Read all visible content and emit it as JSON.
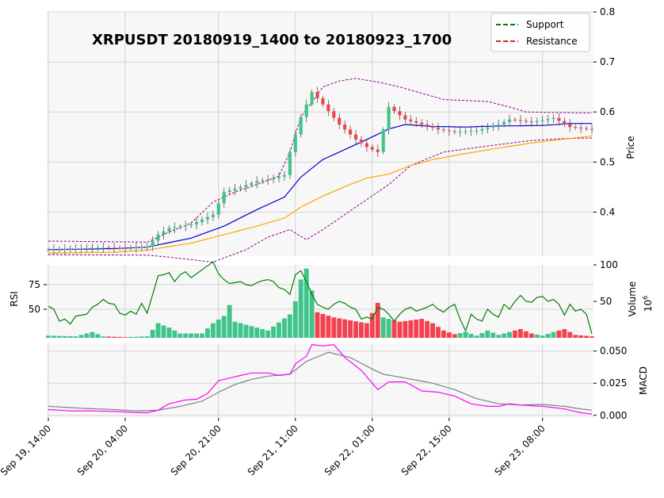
{
  "chart_data": {
    "type": "candlestick",
    "title": "XRPUSDT 20180919_1400 to 20180923_1700",
    "legend": {
      "placement": "top-right",
      "entries": [
        {
          "name": "Support",
          "color": "#008000",
          "style": "dashed"
        },
        {
          "name": "Resistance",
          "color": "#d62728",
          "style": "dashed"
        }
      ]
    },
    "x_ticks": [
      {
        "label": "Sep 19, 14:00",
        "index": 0
      },
      {
        "label": "Sep 20, 04:00",
        "index": 14
      },
      {
        "label": "Sep 20, 21:00",
        "index": 31
      },
      {
        "label": "Sep 21, 11:00",
        "index": 45
      },
      {
        "label": "Sep 22, 01:00",
        "index": 59
      },
      {
        "label": "Sep 22, 15:00",
        "index": 73
      },
      {
        "label": "Sep 23, 08:00",
        "index": 90
      }
    ],
    "n_candles": 100,
    "price_panel": {
      "ylabel": "Price",
      "ylim": [
        0.312,
        0.8
      ],
      "yticks": [
        0.4,
        0.5,
        0.6,
        0.7,
        0.8
      ],
      "ytick_labels": [
        "0.4",
        "0.5",
        "0.6",
        "0.7",
        "0.8"
      ],
      "grid": true
    },
    "rsi_panel": {
      "ylabel": "RSI",
      "ylim": [
        21,
        95
      ],
      "yticks": [
        50,
        75
      ],
      "ytick_labels": [
        "50",
        "75"
      ]
    },
    "volume_panel": {
      "ylabel": "Volume",
      "unit_label": "10",
      "unit_exponent": "6",
      "ylim": [
        0,
        100
      ],
      "yticks": [
        50,
        100
      ],
      "ytick_labels": [
        "50",
        "100"
      ]
    },
    "macd_panel": {
      "ylabel": "MACD",
      "ylim": [
        -0.002,
        0.056
      ],
      "yticks": [
        0.0,
        0.025,
        0.05
      ],
      "ytick_labels": [
        "0.000",
        "0.025",
        "0.050"
      ]
    },
    "colors": {
      "up": "#3fc48a",
      "down": "#f2424f",
      "ma_fast": "#0000cd",
      "ma_slow": "#ffa500",
      "bollinger": "#8b008b",
      "rsi": "#008000",
      "macd": "#ff00ff",
      "macd_signal": "#808080",
      "panel_bg": "#f7f7f7",
      "grid": "#d3d3d3"
    },
    "series_anchors": {
      "close": [
        [
          0,
          0.325
        ],
        [
          10,
          0.329
        ],
        [
          14,
          0.328
        ],
        [
          18,
          0.331
        ],
        [
          20,
          0.355
        ],
        [
          22,
          0.368
        ],
        [
          26,
          0.375
        ],
        [
          30,
          0.395
        ],
        [
          32,
          0.44
        ],
        [
          35,
          0.45
        ],
        [
          38,
          0.462
        ],
        [
          40,
          0.465
        ],
        [
          43,
          0.474
        ],
        [
          44,
          0.52
        ],
        [
          46,
          0.59
        ],
        [
          48,
          0.64
        ],
        [
          50,
          0.615
        ],
        [
          53,
          0.575
        ],
        [
          56,
          0.545
        ],
        [
          58,
          0.53
        ],
        [
          60,
          0.52
        ],
        [
          62,
          0.61
        ],
        [
          65,
          0.585
        ],
        [
          68,
          0.575
        ],
        [
          71,
          0.565
        ],
        [
          74,
          0.56
        ],
        [
          78,
          0.563
        ],
        [
          82,
          0.575
        ],
        [
          84,
          0.585
        ],
        [
          88,
          0.58
        ],
        [
          92,
          0.588
        ],
        [
          95,
          0.57
        ],
        [
          99,
          0.565
        ]
      ],
      "ma_fast": [
        [
          0,
          0.325
        ],
        [
          12,
          0.327
        ],
        [
          18,
          0.33
        ],
        [
          26,
          0.348
        ],
        [
          32,
          0.372
        ],
        [
          38,
          0.405
        ],
        [
          43,
          0.43
        ],
        [
          46,
          0.47
        ],
        [
          50,
          0.505
        ],
        [
          54,
          0.525
        ],
        [
          58,
          0.545
        ],
        [
          62,
          0.566
        ],
        [
          65,
          0.575
        ],
        [
          70,
          0.571
        ],
        [
          76,
          0.57
        ],
        [
          82,
          0.572
        ],
        [
          90,
          0.573
        ],
        [
          95,
          0.577
        ],
        [
          99,
          0.577
        ]
      ],
      "ma_slow": [
        [
          0,
          0.318
        ],
        [
          12,
          0.32
        ],
        [
          18,
          0.324
        ],
        [
          26,
          0.338
        ],
        [
          32,
          0.355
        ],
        [
          38,
          0.372
        ],
        [
          43,
          0.388
        ],
        [
          46,
          0.41
        ],
        [
          50,
          0.432
        ],
        [
          54,
          0.451
        ],
        [
          58,
          0.468
        ],
        [
          62,
          0.476
        ],
        [
          66,
          0.493
        ],
        [
          70,
          0.505
        ],
        [
          76,
          0.517
        ],
        [
          82,
          0.528
        ],
        [
          88,
          0.538
        ],
        [
          94,
          0.546
        ],
        [
          99,
          0.552
        ]
      ],
      "bb_upper": [
        [
          0,
          0.342
        ],
        [
          18,
          0.34
        ],
        [
          22,
          0.36
        ],
        [
          26,
          0.378
        ],
        [
          30,
          0.42
        ],
        [
          34,
          0.44
        ],
        [
          38,
          0.455
        ],
        [
          42,
          0.472
        ],
        [
          44,
          0.52
        ],
        [
          46,
          0.59
        ],
        [
          50,
          0.65
        ],
        [
          53,
          0.662
        ],
        [
          56,
          0.667
        ],
        [
          60,
          0.66
        ],
        [
          64,
          0.65
        ],
        [
          72,
          0.625
        ],
        [
          80,
          0.621
        ],
        [
          84,
          0.61
        ],
        [
          87,
          0.6
        ],
        [
          99,
          0.598
        ]
      ],
      "bb_lower": [
        [
          0,
          0.315
        ],
        [
          18,
          0.314
        ],
        [
          22,
          0.31
        ],
        [
          26,
          0.305
        ],
        [
          30,
          0.3
        ],
        [
          36,
          0.325
        ],
        [
          40,
          0.35
        ],
        [
          44,
          0.365
        ],
        [
          47,
          0.345
        ],
        [
          50,
          0.365
        ],
        [
          54,
          0.395
        ],
        [
          58,
          0.425
        ],
        [
          62,
          0.455
        ],
        [
          66,
          0.493
        ],
        [
          72,
          0.52
        ],
        [
          80,
          0.532
        ],
        [
          88,
          0.543
        ],
        [
          94,
          0.547
        ],
        [
          99,
          0.548
        ]
      ],
      "rsi": [
        [
          0,
          53
        ],
        [
          1,
          50
        ],
        [
          2,
          38
        ],
        [
          3,
          40
        ],
        [
          4,
          35
        ],
        [
          5,
          43
        ],
        [
          6,
          44
        ],
        [
          7,
          45
        ],
        [
          8,
          52
        ],
        [
          9,
          55
        ],
        [
          10,
          60
        ],
        [
          11,
          56
        ],
        [
          12,
          55
        ],
        [
          13,
          46
        ],
        [
          14,
          44
        ],
        [
          15,
          48
        ],
        [
          16,
          45
        ],
        [
          17,
          56
        ],
        [
          18,
          46
        ],
        [
          19,
          65
        ],
        [
          20,
          84
        ],
        [
          21,
          85
        ],
        [
          22,
          87
        ],
        [
          23,
          78
        ],
        [
          24,
          85
        ],
        [
          25,
          88
        ],
        [
          26,
          82
        ],
        [
          27,
          86
        ],
        [
          28,
          90
        ],
        [
          29,
          94
        ],
        [
          30,
          98
        ],
        [
          31,
          86
        ],
        [
          32,
          80
        ],
        [
          33,
          76
        ],
        [
          34,
          77
        ],
        [
          35,
          78
        ],
        [
          36,
          75
        ],
        [
          37,
          74
        ],
        [
          38,
          77
        ],
        [
          39,
          79
        ],
        [
          40,
          80
        ],
        [
          41,
          78
        ],
        [
          42,
          72
        ],
        [
          43,
          70
        ],
        [
          44,
          65
        ],
        [
          45,
          85
        ],
        [
          46,
          89
        ],
        [
          47,
          78
        ],
        [
          48,
          65
        ],
        [
          49,
          55
        ],
        [
          50,
          52
        ],
        [
          51,
          50
        ],
        [
          52,
          55
        ],
        [
          53,
          58
        ],
        [
          54,
          56
        ],
        [
          55,
          52
        ],
        [
          56,
          50
        ],
        [
          57,
          40
        ],
        [
          58,
          42
        ],
        [
          59,
          40
        ],
        [
          60,
          52
        ],
        [
          61,
          50
        ],
        [
          62,
          45
        ],
        [
          63,
          38
        ],
        [
          64,
          45
        ],
        [
          65,
          50
        ],
        [
          66,
          52
        ],
        [
          67,
          48
        ],
        [
          68,
          50
        ],
        [
          69,
          52
        ],
        [
          70,
          55
        ],
        [
          71,
          50
        ],
        [
          72,
          47
        ],
        [
          73,
          52
        ],
        [
          74,
          55
        ],
        [
          75,
          40
        ],
        [
          76,
          28
        ],
        [
          77,
          45
        ],
        [
          78,
          40
        ],
        [
          79,
          38
        ],
        [
          80,
          50
        ],
        [
          81,
          45
        ],
        [
          82,
          42
        ],
        [
          83,
          55
        ],
        [
          84,
          50
        ],
        [
          85,
          58
        ],
        [
          86,
          64
        ],
        [
          87,
          58
        ],
        [
          88,
          57
        ],
        [
          89,
          62
        ],
        [
          90,
          63
        ],
        [
          91,
          58
        ],
        [
          92,
          60
        ],
        [
          93,
          55
        ],
        [
          94,
          44
        ],
        [
          95,
          55
        ],
        [
          96,
          48
        ],
        [
          97,
          50
        ],
        [
          98,
          45
        ],
        [
          99,
          25
        ]
      ],
      "macd": [
        [
          0,
          0.0045
        ],
        [
          4,
          0.0035
        ],
        [
          8,
          0.0035
        ],
        [
          12,
          0.003
        ],
        [
          16,
          0.0022
        ],
        [
          18,
          0.002
        ],
        [
          20,
          0.004
        ],
        [
          22,
          0.009
        ],
        [
          25,
          0.012
        ],
        [
          27,
          0.0125
        ],
        [
          29,
          0.017
        ],
        [
          31,
          0.027
        ],
        [
          34,
          0.03
        ],
        [
          37,
          0.033
        ],
        [
          40,
          0.033
        ],
        [
          42,
          0.031
        ],
        [
          44,
          0.032
        ],
        [
          45,
          0.04
        ],
        [
          47,
          0.046
        ],
        [
          48,
          0.055
        ],
        [
          50,
          0.054
        ],
        [
          52,
          0.055
        ],
        [
          54,
          0.045
        ],
        [
          57,
          0.035
        ],
        [
          59,
          0.025
        ],
        [
          60,
          0.02
        ],
        [
          62,
          0.026
        ],
        [
          65,
          0.026
        ],
        [
          68,
          0.019
        ],
        [
          71,
          0.018
        ],
        [
          74,
          0.015
        ],
        [
          77,
          0.009
        ],
        [
          80,
          0.007
        ],
        [
          82,
          0.007
        ],
        [
          84,
          0.009
        ],
        [
          86,
          0.008
        ],
        [
          90,
          0.007
        ],
        [
          94,
          0.005
        ],
        [
          97,
          0.002
        ],
        [
          99,
          0.001
        ]
      ],
      "macd_signal": [
        [
          0,
          0.007
        ],
        [
          6,
          0.0055
        ],
        [
          12,
          0.0045
        ],
        [
          16,
          0.0035
        ],
        [
          20,
          0.004
        ],
        [
          24,
          0.007
        ],
        [
          28,
          0.011
        ],
        [
          31,
          0.018
        ],
        [
          34,
          0.024
        ],
        [
          37,
          0.028
        ],
        [
          40,
          0.0305
        ],
        [
          44,
          0.032
        ],
        [
          47,
          0.042
        ],
        [
          51,
          0.049
        ],
        [
          55,
          0.045
        ],
        [
          59,
          0.036
        ],
        [
          61,
          0.032
        ],
        [
          65,
          0.029
        ],
        [
          70,
          0.025
        ],
        [
          74,
          0.02
        ],
        [
          78,
          0.013
        ],
        [
          82,
          0.009
        ],
        [
          86,
          0.008
        ],
        [
          90,
          0.0085
        ],
        [
          94,
          0.007
        ],
        [
          97,
          0.005
        ],
        [
          99,
          0.004
        ]
      ],
      "volume": [
        [
          0,
          3
        ],
        [
          5,
          2
        ],
        [
          8,
          8
        ],
        [
          10,
          2
        ],
        [
          14,
          1
        ],
        [
          18,
          2
        ],
        [
          20,
          20
        ],
        [
          22,
          14
        ],
        [
          24,
          6
        ],
        [
          28,
          6
        ],
        [
          30,
          20
        ],
        [
          32,
          30
        ],
        [
          33,
          45
        ],
        [
          34,
          22
        ],
        [
          36,
          18
        ],
        [
          40,
          10
        ],
        [
          44,
          32
        ],
        [
          45,
          50
        ],
        [
          46,
          80
        ],
        [
          47,
          95
        ],
        [
          48,
          65
        ],
        [
          49,
          35
        ],
        [
          52,
          28
        ],
        [
          55,
          24
        ],
        [
          58,
          20
        ],
        [
          60,
          48
        ],
        [
          61,
          28
        ],
        [
          64,
          22
        ],
        [
          68,
          26
        ],
        [
          70,
          20
        ],
        [
          72,
          10
        ],
        [
          74,
          5
        ],
        [
          76,
          8
        ],
        [
          78,
          3
        ],
        [
          80,
          10
        ],
        [
          82,
          4
        ],
        [
          84,
          8
        ],
        [
          86,
          12
        ],
        [
          88,
          6
        ],
        [
          90,
          3
        ],
        [
          92,
          8
        ],
        [
          94,
          12
        ],
        [
          96,
          4
        ],
        [
          99,
          2
        ]
      ]
    }
  }
}
